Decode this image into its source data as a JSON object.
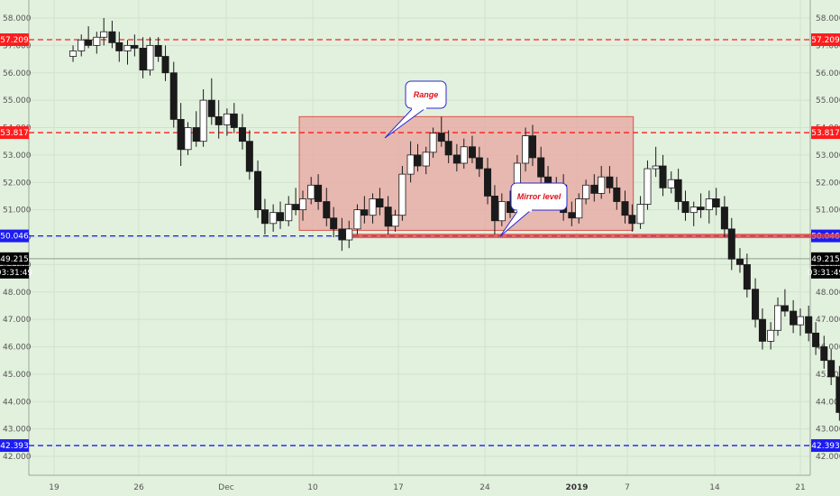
{
  "chart_data": {
    "type": "candlestick",
    "y_ticks": [
      "58.000",
      "57.000",
      "56.000",
      "55.000",
      "54.000",
      "53.000",
      "52.000",
      "51.000",
      "50.000",
      "49.000",
      "48.000",
      "47.000",
      "46.000",
      "45.000",
      "44.000",
      "43.000",
      "42.000"
    ],
    "x_ticks": [
      {
        "label": "19",
        "bold": false
      },
      {
        "label": "26",
        "bold": false
      },
      {
        "label": "Dec",
        "bold": false
      },
      {
        "label": "10",
        "bold": false
      },
      {
        "label": "17",
        "bold": false
      },
      {
        "label": "24",
        "bold": false
      },
      {
        "label": "2019",
        "bold": true
      },
      {
        "label": "7",
        "bold": false
      },
      {
        "label": "14",
        "bold": false
      },
      {
        "label": "21",
        "bold": false
      }
    ],
    "levels": [
      {
        "value": 57.209,
        "label": "57.209",
        "color": "#ff1c1c",
        "style": "dashed"
      },
      {
        "value": 53.817,
        "label": "53.817",
        "color": "#ff1c1c",
        "style": "dashed"
      },
      {
        "value": 50.046,
        "label": "50.046",
        "color": "#1c1cf0",
        "style": "dashed"
      },
      {
        "value": 42.393,
        "label": "42.393",
        "color": "#1c1cf0",
        "style": "dashed"
      }
    ],
    "current_price": {
      "value": 49.215,
      "label": "49.215",
      "countdown": "03:31:49"
    },
    "range_box": {
      "x_start": 20.7,
      "x_end": 48.9,
      "high": 54.4,
      "low": 50.25,
      "color": "#e8a6a0"
    },
    "mirror_level": {
      "value": 50.046,
      "x_start": 24.5,
      "x_end": 81.4,
      "color": "#e23b3b"
    },
    "annotations": [
      {
        "text": "Range",
        "color": "#e0101a"
      },
      {
        "text": "Mirror level",
        "color": "#e0101a"
      }
    ],
    "projection_path": {
      "color": "#1a2bd0",
      "points": [
        [
          74.3,
          49.2
        ],
        [
          76.5,
          50.6
        ],
        [
          77.3,
          51.3
        ],
        [
          78.1,
          50.6
        ],
        [
          78.7,
          50.25
        ],
        [
          79.6,
          50.6
        ],
        [
          80.2,
          51.4
        ],
        [
          81.4,
          52.4
        ],
        [
          82.4,
          53.5
        ],
        [
          83.6,
          53.1
        ]
      ]
    },
    "candles": [
      {
        "x": 1.6,
        "o": 56.6,
        "h": 57.0,
        "l": 56.4,
        "c": 56.8
      },
      {
        "x": 2.3,
        "o": 56.8,
        "h": 57.4,
        "l": 56.6,
        "c": 57.2
      },
      {
        "x": 2.9,
        "o": 57.2,
        "h": 57.7,
        "l": 56.9,
        "c": 57.0
      },
      {
        "x": 3.6,
        "o": 57.0,
        "h": 57.5,
        "l": 56.7,
        "c": 57.3
      },
      {
        "x": 4.2,
        "o": 57.3,
        "h": 58.0,
        "l": 57.0,
        "c": 57.5
      },
      {
        "x": 4.9,
        "o": 57.5,
        "h": 57.9,
        "l": 56.9,
        "c": 57.1
      },
      {
        "x": 5.5,
        "o": 57.1,
        "h": 57.5,
        "l": 56.4,
        "c": 56.8
      },
      {
        "x": 6.2,
        "o": 56.8,
        "h": 57.2,
        "l": 56.3,
        "c": 57.0
      },
      {
        "x": 6.8,
        "o": 57.0,
        "h": 57.4,
        "l": 56.6,
        "c": 56.9
      },
      {
        "x": 7.5,
        "o": 56.9,
        "h": 57.3,
        "l": 55.8,
        "c": 56.1
      },
      {
        "x": 8.1,
        "o": 56.1,
        "h": 57.3,
        "l": 55.9,
        "c": 57.0
      },
      {
        "x": 8.8,
        "o": 57.0,
        "h": 57.3,
        "l": 56.4,
        "c": 56.6
      },
      {
        "x": 9.4,
        "o": 56.6,
        "h": 57.0,
        "l": 55.7,
        "c": 56.0
      },
      {
        "x": 10.1,
        "o": 56.0,
        "h": 56.4,
        "l": 54.0,
        "c": 54.3
      },
      {
        "x": 10.7,
        "o": 54.3,
        "h": 54.9,
        "l": 52.6,
        "c": 53.2
      },
      {
        "x": 11.3,
        "o": 53.2,
        "h": 54.2,
        "l": 53.0,
        "c": 54.0
      },
      {
        "x": 12.0,
        "o": 54.0,
        "h": 54.6,
        "l": 53.3,
        "c": 53.5
      },
      {
        "x": 12.6,
        "o": 53.5,
        "h": 55.4,
        "l": 53.3,
        "c": 55.0
      },
      {
        "x": 13.3,
        "o": 55.0,
        "h": 55.8,
        "l": 54.1,
        "c": 54.4
      },
      {
        "x": 13.9,
        "o": 54.4,
        "h": 55.0,
        "l": 53.6,
        "c": 54.1
      },
      {
        "x": 14.6,
        "o": 54.1,
        "h": 54.7,
        "l": 53.7,
        "c": 54.5
      },
      {
        "x": 15.2,
        "o": 54.5,
        "h": 54.9,
        "l": 53.8,
        "c": 54.0
      },
      {
        "x": 15.9,
        "o": 54.0,
        "h": 54.5,
        "l": 53.2,
        "c": 53.5
      },
      {
        "x": 16.5,
        "o": 53.5,
        "h": 53.9,
        "l": 52.1,
        "c": 52.4
      },
      {
        "x": 17.2,
        "o": 52.4,
        "h": 52.8,
        "l": 50.7,
        "c": 51.0
      },
      {
        "x": 17.8,
        "o": 51.0,
        "h": 51.4,
        "l": 50.1,
        "c": 50.5
      },
      {
        "x": 18.5,
        "o": 50.5,
        "h": 51.2,
        "l": 50.2,
        "c": 50.9
      },
      {
        "x": 19.1,
        "o": 50.9,
        "h": 51.3,
        "l": 50.3,
        "c": 50.6
      },
      {
        "x": 19.8,
        "o": 50.6,
        "h": 51.5,
        "l": 50.4,
        "c": 51.2
      },
      {
        "x": 20.4,
        "o": 51.2,
        "h": 51.8,
        "l": 50.8,
        "c": 51.0
      },
      {
        "x": 21.0,
        "o": 51.0,
        "h": 51.7,
        "l": 50.6,
        "c": 51.4
      },
      {
        "x": 21.7,
        "o": 51.4,
        "h": 52.2,
        "l": 51.2,
        "c": 51.9
      },
      {
        "x": 22.3,
        "o": 51.9,
        "h": 52.3,
        "l": 51.0,
        "c": 51.3
      },
      {
        "x": 23.0,
        "o": 51.3,
        "h": 51.8,
        "l": 50.4,
        "c": 50.7
      },
      {
        "x": 23.6,
        "o": 50.7,
        "h": 51.1,
        "l": 50.0,
        "c": 50.3
      },
      {
        "x": 24.3,
        "o": 50.3,
        "h": 50.7,
        "l": 49.5,
        "c": 49.9
      },
      {
        "x": 24.9,
        "o": 49.9,
        "h": 50.6,
        "l": 49.6,
        "c": 50.3
      },
      {
        "x": 25.6,
        "o": 50.3,
        "h": 51.2,
        "l": 50.1,
        "c": 51.0
      },
      {
        "x": 26.2,
        "o": 51.0,
        "h": 51.5,
        "l": 50.5,
        "c": 50.8
      },
      {
        "x": 26.9,
        "o": 50.8,
        "h": 51.6,
        "l": 50.5,
        "c": 51.4
      },
      {
        "x": 27.5,
        "o": 51.4,
        "h": 51.8,
        "l": 50.8,
        "c": 51.1
      },
      {
        "x": 28.2,
        "o": 51.1,
        "h": 51.5,
        "l": 50.1,
        "c": 50.4
      },
      {
        "x": 28.8,
        "o": 50.4,
        "h": 51.0,
        "l": 50.2,
        "c": 50.8
      },
      {
        "x": 29.4,
        "o": 50.8,
        "h": 52.6,
        "l": 50.6,
        "c": 52.3
      },
      {
        "x": 30.1,
        "o": 52.3,
        "h": 53.5,
        "l": 52.0,
        "c": 53.0
      },
      {
        "x": 30.7,
        "o": 53.0,
        "h": 53.4,
        "l": 52.4,
        "c": 52.6
      },
      {
        "x": 31.4,
        "o": 52.6,
        "h": 53.3,
        "l": 52.3,
        "c": 53.1
      },
      {
        "x": 32.0,
        "o": 53.1,
        "h": 54.0,
        "l": 52.9,
        "c": 53.8
      },
      {
        "x": 32.7,
        "o": 53.8,
        "h": 54.4,
        "l": 53.3,
        "c": 53.5
      },
      {
        "x": 33.3,
        "o": 53.5,
        "h": 53.9,
        "l": 52.7,
        "c": 53.0
      },
      {
        "x": 34.0,
        "o": 53.0,
        "h": 53.4,
        "l": 52.4,
        "c": 52.7
      },
      {
        "x": 34.6,
        "o": 52.7,
        "h": 53.6,
        "l": 52.5,
        "c": 53.3
      },
      {
        "x": 35.3,
        "o": 53.3,
        "h": 53.7,
        "l": 52.7,
        "c": 52.9
      },
      {
        "x": 35.9,
        "o": 52.9,
        "h": 53.3,
        "l": 52.2,
        "c": 52.5
      },
      {
        "x": 36.6,
        "o": 52.5,
        "h": 52.9,
        "l": 51.2,
        "c": 51.5
      },
      {
        "x": 37.2,
        "o": 51.5,
        "h": 51.9,
        "l": 50.1,
        "c": 50.6
      },
      {
        "x": 37.8,
        "o": 50.6,
        "h": 51.6,
        "l": 50.4,
        "c": 51.3
      },
      {
        "x": 38.5,
        "o": 51.3,
        "h": 51.7,
        "l": 50.7,
        "c": 50.9
      },
      {
        "x": 39.1,
        "o": 50.9,
        "h": 53.0,
        "l": 50.7,
        "c": 52.7
      },
      {
        "x": 39.8,
        "o": 52.7,
        "h": 54.0,
        "l": 52.4,
        "c": 53.7
      },
      {
        "x": 40.4,
        "o": 53.7,
        "h": 54.1,
        "l": 52.6,
        "c": 52.9
      },
      {
        "x": 41.1,
        "o": 52.9,
        "h": 53.3,
        "l": 51.9,
        "c": 52.2
      },
      {
        "x": 41.7,
        "o": 52.2,
        "h": 52.6,
        "l": 51.1,
        "c": 51.4
      },
      {
        "x": 42.4,
        "o": 51.4,
        "h": 52.2,
        "l": 51.1,
        "c": 51.9
      },
      {
        "x": 43.0,
        "o": 51.9,
        "h": 52.3,
        "l": 50.6,
        "c": 50.9
      },
      {
        "x": 43.7,
        "o": 50.9,
        "h": 51.3,
        "l": 50.4,
        "c": 50.7
      },
      {
        "x": 44.3,
        "o": 50.7,
        "h": 51.6,
        "l": 50.5,
        "c": 51.4
      },
      {
        "x": 44.9,
        "o": 51.4,
        "h": 52.1,
        "l": 51.2,
        "c": 51.9
      },
      {
        "x": 45.6,
        "o": 51.9,
        "h": 52.3,
        "l": 51.3,
        "c": 51.6
      },
      {
        "x": 46.2,
        "o": 51.6,
        "h": 52.6,
        "l": 51.4,
        "c": 52.2
      },
      {
        "x": 46.9,
        "o": 52.2,
        "h": 52.6,
        "l": 51.6,
        "c": 51.8
      },
      {
        "x": 47.5,
        "o": 51.8,
        "h": 52.2,
        "l": 51.0,
        "c": 51.3
      },
      {
        "x": 48.2,
        "o": 51.3,
        "h": 51.7,
        "l": 50.5,
        "c": 50.8
      },
      {
        "x": 48.8,
        "o": 50.8,
        "h": 51.2,
        "l": 50.2,
        "c": 50.5
      },
      {
        "x": 49.5,
        "o": 50.5,
        "h": 51.5,
        "l": 50.3,
        "c": 51.2
      },
      {
        "x": 50.1,
        "o": 51.2,
        "h": 52.8,
        "l": 51.0,
        "c": 52.5
      },
      {
        "x": 50.8,
        "o": 52.5,
        "h": 53.3,
        "l": 52.2,
        "c": 52.6
      },
      {
        "x": 51.4,
        "o": 52.6,
        "h": 53.0,
        "l": 51.5,
        "c": 51.8
      },
      {
        "x": 52.1,
        "o": 51.8,
        "h": 52.4,
        "l": 51.6,
        "c": 52.1
      },
      {
        "x": 52.7,
        "o": 52.1,
        "h": 52.5,
        "l": 51.0,
        "c": 51.3
      },
      {
        "x": 53.3,
        "o": 51.3,
        "h": 51.7,
        "l": 50.6,
        "c": 50.9
      },
      {
        "x": 54.0,
        "o": 50.9,
        "h": 51.3,
        "l": 50.4,
        "c": 51.1
      },
      {
        "x": 54.6,
        "o": 51.1,
        "h": 51.6,
        "l": 50.7,
        "c": 51.0
      },
      {
        "x": 55.3,
        "o": 51.0,
        "h": 51.7,
        "l": 50.5,
        "c": 51.4
      },
      {
        "x": 55.9,
        "o": 51.4,
        "h": 51.8,
        "l": 50.8,
        "c": 51.1
      },
      {
        "x": 56.6,
        "o": 51.1,
        "h": 51.5,
        "l": 50.0,
        "c": 50.3
      },
      {
        "x": 57.2,
        "o": 50.3,
        "h": 50.7,
        "l": 48.8,
        "c": 49.2
      },
      {
        "x": 57.9,
        "o": 49.2,
        "h": 49.6,
        "l": 48.7,
        "c": 49.0
      },
      {
        "x": 58.5,
        "o": 49.0,
        "h": 49.4,
        "l": 47.8,
        "c": 48.1
      },
      {
        "x": 59.2,
        "o": 48.1,
        "h": 48.5,
        "l": 46.7,
        "c": 47.0
      },
      {
        "x": 59.8,
        "o": 47.0,
        "h": 47.4,
        "l": 45.9,
        "c": 46.2
      },
      {
        "x": 60.5,
        "o": 46.2,
        "h": 46.9,
        "l": 45.9,
        "c": 46.6
      },
      {
        "x": 61.1,
        "o": 46.6,
        "h": 47.8,
        "l": 46.4,
        "c": 47.5
      },
      {
        "x": 61.7,
        "o": 47.5,
        "h": 48.1,
        "l": 47.1,
        "c": 47.3
      },
      {
        "x": 62.4,
        "o": 47.3,
        "h": 47.7,
        "l": 46.5,
        "c": 46.8
      },
      {
        "x": 63.0,
        "o": 46.8,
        "h": 47.4,
        "l": 46.4,
        "c": 47.1
      },
      {
        "x": 63.7,
        "o": 47.1,
        "h": 47.5,
        "l": 46.2,
        "c": 46.5
      },
      {
        "x": 64.3,
        "o": 46.5,
        "h": 46.9,
        "l": 45.7,
        "c": 46.0
      },
      {
        "x": 65.0,
        "o": 46.0,
        "h": 46.4,
        "l": 45.2,
        "c": 45.5
      },
      {
        "x": 65.6,
        "o": 45.5,
        "h": 45.9,
        "l": 44.6,
        "c": 44.9
      },
      {
        "x": 66.3,
        "o": 44.9,
        "h": 45.3,
        "l": 43.3,
        "c": 43.6
      },
      {
        "x": 66.9,
        "o": 43.6,
        "h": 43.9,
        "l": 42.2,
        "c": 42.5
      },
      {
        "x": 67.6,
        "o": 42.5,
        "h": 43.4,
        "l": 42.3,
        "c": 43.1
      },
      {
        "x": 68.2,
        "o": 43.1,
        "h": 45.0,
        "l": 42.9,
        "c": 44.7
      },
      {
        "x": 68.9,
        "o": 44.7,
        "h": 46.7,
        "l": 44.5,
        "c": 46.4
      },
      {
        "x": 69.5,
        "o": 46.4,
        "h": 46.8,
        "l": 45.1,
        "c": 45.4
      },
      {
        "x": 70.1,
        "o": 45.4,
        "h": 45.8,
        "l": 44.5,
        "c": 44.8
      },
      {
        "x": 70.8,
        "o": 44.8,
        "h": 45.6,
        "l": 44.6,
        "c": 45.3
      },
      {
        "x": 71.4,
        "o": 45.3,
        "h": 45.7,
        "l": 44.6,
        "c": 44.9
      },
      {
        "x": 72.1,
        "o": 44.9,
        "h": 45.4,
        "l": 44.7,
        "c": 45.1
      },
      {
        "x": 72.7,
        "o": 45.1,
        "h": 45.5,
        "l": 44.5,
        "c": 44.8
      },
      {
        "x": 73.4,
        "o": 44.8,
        "h": 45.7,
        "l": 44.6,
        "c": 45.4
      },
      {
        "x": 74.0,
        "o": 45.4,
        "h": 46.5,
        "l": 45.2,
        "c": 46.2
      },
      {
        "x": 74.7,
        "o": 46.2,
        "h": 46.6,
        "l": 45.4,
        "c": 45.7
      },
      {
        "x": 75.3,
        "o": 45.7,
        "h": 46.1,
        "l": 44.5,
        "c": 44.8
      },
      {
        "x": 76.0,
        "o": 44.8,
        "h": 45.2,
        "l": 44.1,
        "c": 44.4
      },
      {
        "x": 76.6,
        "o": 44.4,
        "h": 47.3,
        "l": 44.2,
        "c": 47.0
      },
      {
        "x": 77.2,
        "o": 47.0,
        "h": 47.4,
        "l": 45.8,
        "c": 46.1
      },
      {
        "x": 77.9,
        "o": 46.1,
        "h": 47.0,
        "l": 45.9,
        "c": 46.7
      },
      {
        "x": 78.5,
        "o": 46.7,
        "h": 47.8,
        "l": 46.5,
        "c": 47.5
      },
      {
        "x": 79.2,
        "o": 47.5,
        "h": 48.3,
        "l": 47.3,
        "c": 48.0
      },
      {
        "x": 79.8,
        "o": 48.0,
        "h": 48.7,
        "l": 47.8,
        "c": 48.4
      },
      {
        "x": 80.5,
        "o": 48.4,
        "h": 49.0,
        "l": 48.2,
        "c": 48.7
      },
      {
        "x": 81.1,
        "o": 48.7,
        "h": 49.3,
        "l": 48.5,
        "c": 49.0
      },
      {
        "x": 81.8,
        "o": 49.0,
        "h": 49.4,
        "l": 48.6,
        "c": 49.2
      }
    ]
  }
}
